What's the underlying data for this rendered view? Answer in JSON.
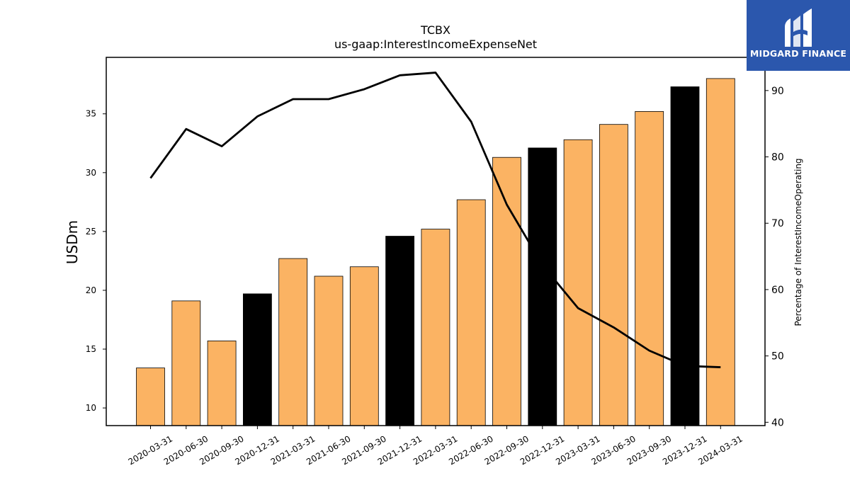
{
  "chart_data": {
    "type": "bar",
    "title": "TCBX",
    "subtitle": "us-gaap:InterestIncomeExpenseNet",
    "ylabel": "USDm",
    "y2label": "Percentage of InterestIncomeOperating",
    "categories": [
      "2020-03-31",
      "2020-06-30",
      "2020-09-30",
      "2020-12-31",
      "2021-03-31",
      "2021-06-30",
      "2021-09-30",
      "2021-12-31",
      "2022-03-31",
      "2022-06-30",
      "2022-09-30",
      "2022-12-31",
      "2023-03-31",
      "2023-06-30",
      "2023-09-30",
      "2023-12-31",
      "2024-03-31"
    ],
    "series": [
      {
        "type": "bar",
        "axis": "left",
        "values": [
          13.4,
          19.1,
          15.7,
          19.7,
          22.7,
          21.2,
          22.0,
          24.6,
          25.2,
          27.7,
          31.3,
          32.1,
          32.8,
          34.1,
          35.2,
          37.3,
          38.0
        ],
        "colors": [
          "#fbb363",
          "#fbb363",
          "#fbb363",
          "#000000",
          "#fbb363",
          "#fbb363",
          "#fbb363",
          "#000000",
          "#fbb363",
          "#fbb363",
          "#fbb363",
          "#000000",
          "#fbb363",
          "#fbb363",
          "#fbb363",
          "#000000",
          "#fbb363"
        ]
      },
      {
        "type": "line",
        "axis": "right",
        "color": "#000000",
        "values": [
          76.8,
          84.2,
          81.6,
          86.1,
          88.7,
          88.7,
          90.2,
          92.3,
          92.7,
          85.3,
          72.8,
          63.7,
          57.2,
          54.3,
          50.8,
          48.5,
          48.3
        ]
      }
    ],
    "ylim": [
      8.5,
      39.8
    ],
    "y2lim": [
      39.5,
      95.0
    ],
    "yticks": [
      10,
      15,
      20,
      25,
      30,
      35
    ],
    "y2ticks": [
      40,
      50,
      60,
      70,
      80,
      90
    ],
    "grid": false,
    "legend": "none"
  },
  "logo": {
    "name": "MIDGARD FINANCE"
  }
}
